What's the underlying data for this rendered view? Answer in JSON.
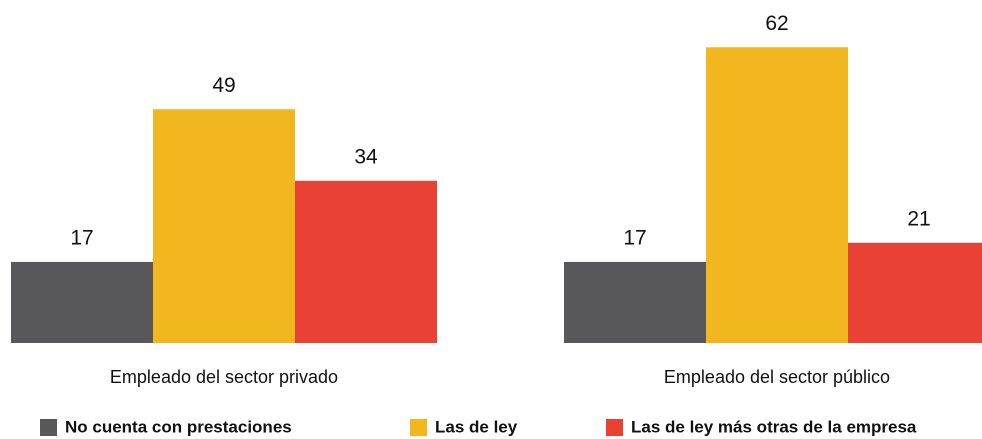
{
  "chart_data": {
    "type": "bar",
    "categories": [
      "Empleado del sector privado",
      "Empleado del sector público"
    ],
    "series": [
      {
        "name": "No cuenta con prestaciones",
        "color": "#58585a",
        "values": [
          17,
          17
        ]
      },
      {
        "name": "Las de ley",
        "color": "#f2b61f",
        "values": [
          49,
          62
        ]
      },
      {
        "name": "Las de ley más otras de la empresa",
        "color": "#e94234",
        "values": [
          34,
          21
        ]
      }
    ]
  }
}
